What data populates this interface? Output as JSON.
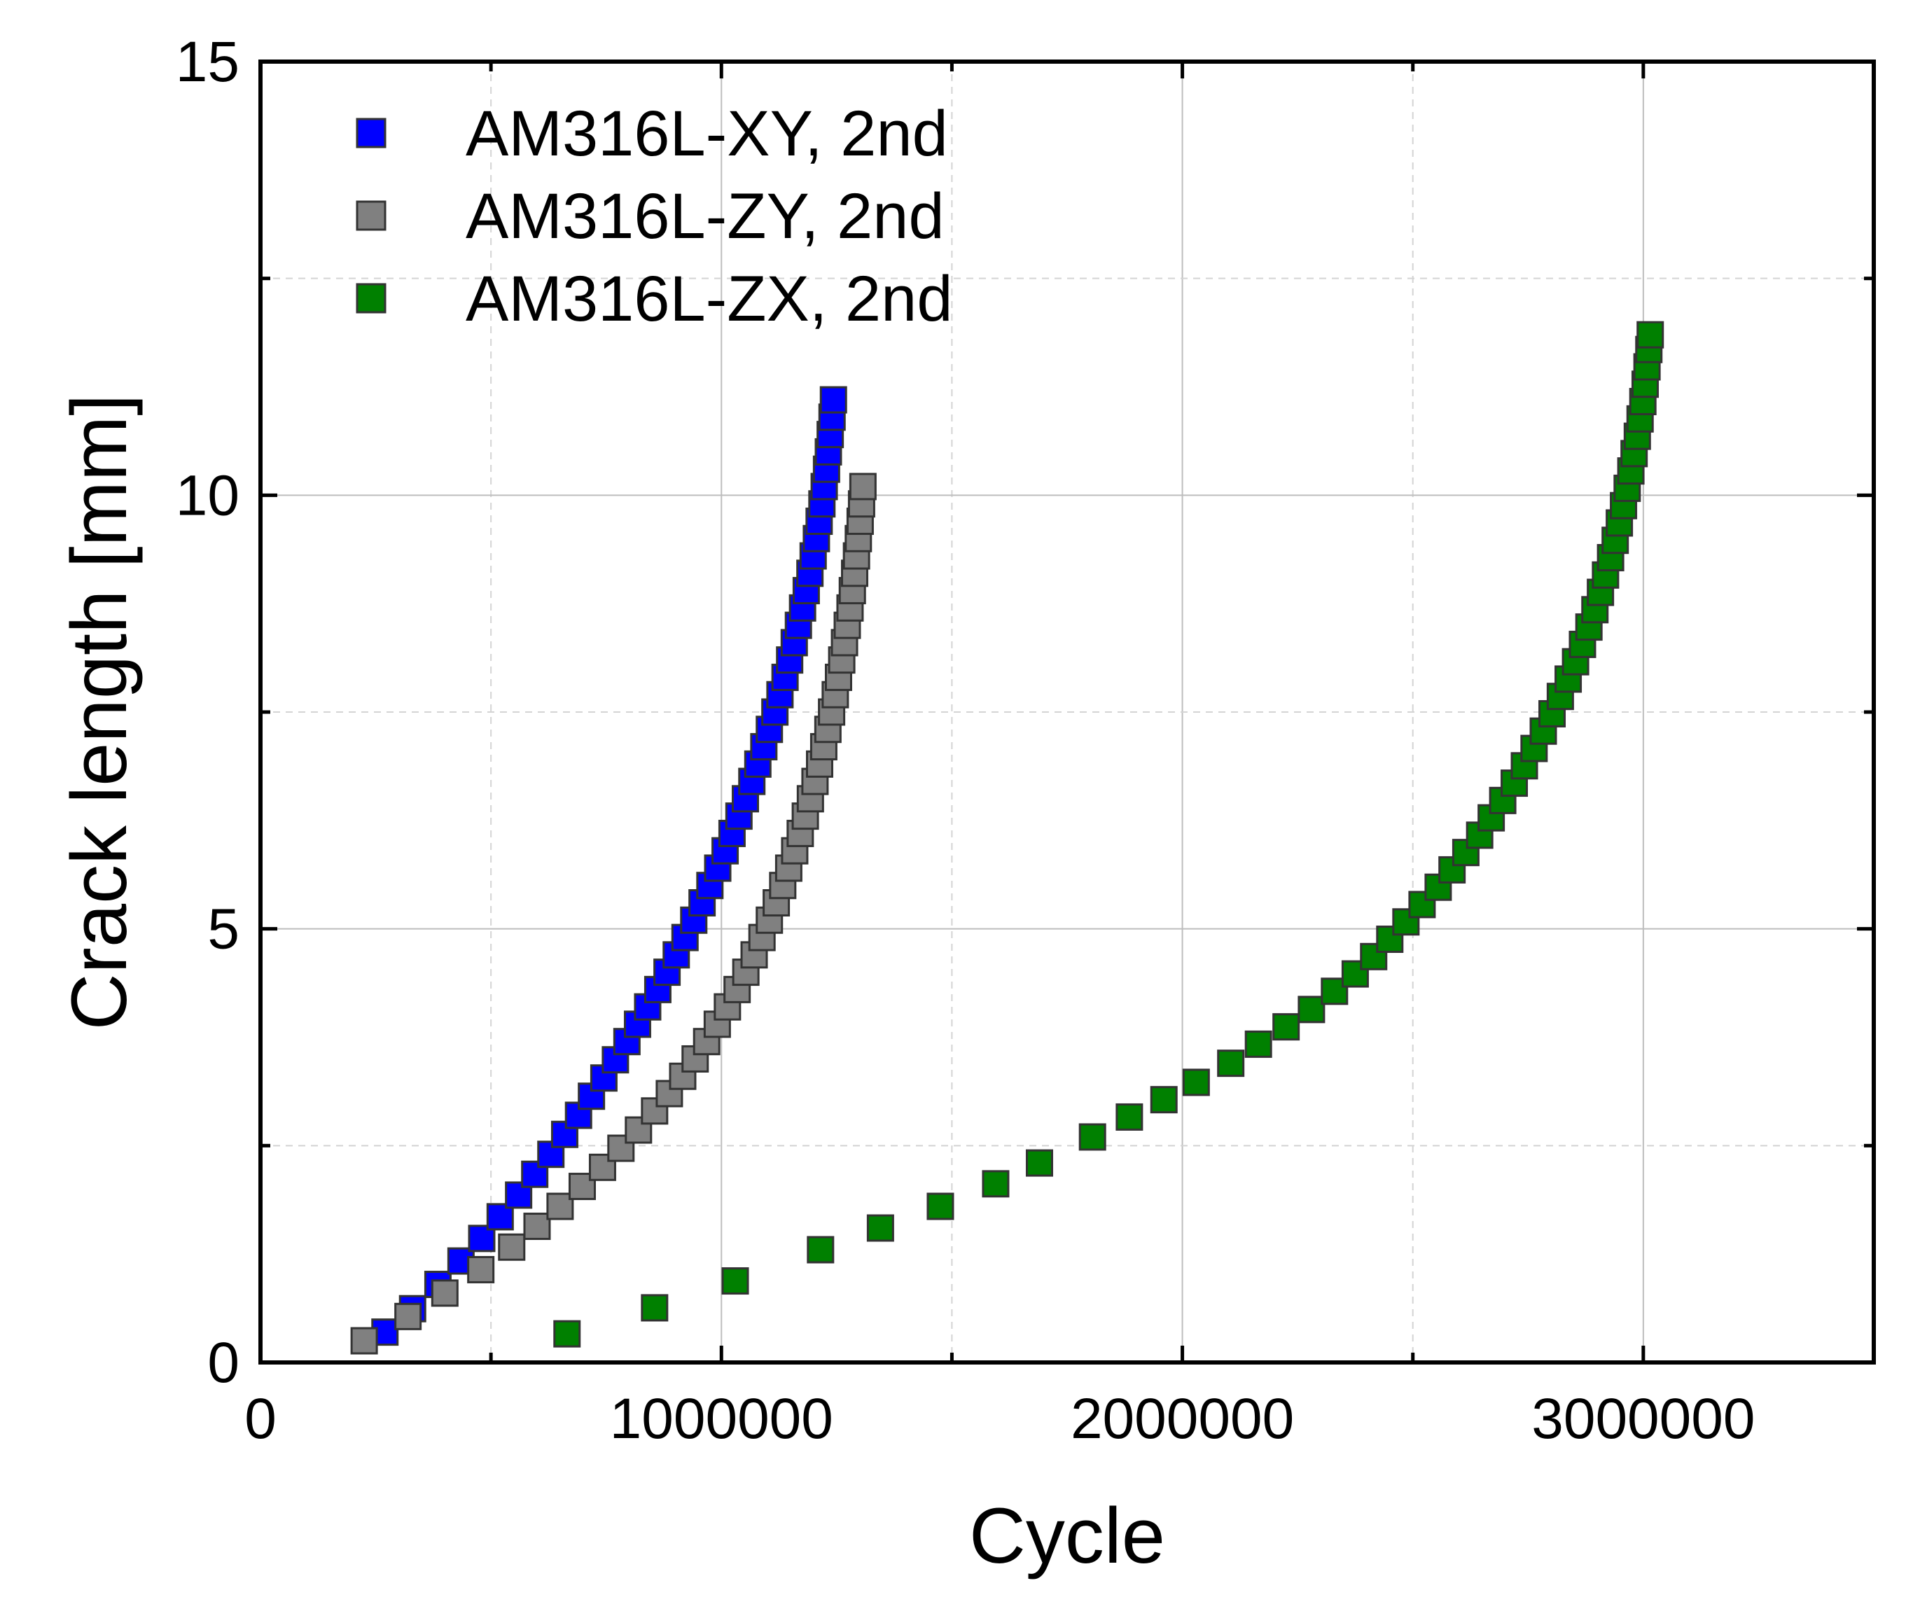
{
  "chart_data": {
    "type": "scatter",
    "xlabel": "Cycle",
    "ylabel": "Crack length [mm]",
    "xlim": [
      0,
      3500000
    ],
    "ylim": [
      0,
      15
    ],
    "x_ticks": [
      0,
      1000000,
      2000000,
      3000000
    ],
    "x_tick_labels": [
      "0",
      "1000000",
      "2000000",
      "3000000"
    ],
    "y_ticks": [
      0,
      5,
      10,
      15
    ],
    "y_tick_labels": [
      "0",
      "5",
      "10",
      "15"
    ],
    "grid": true,
    "legend_position": "top-left",
    "series": [
      {
        "name": "AM316L-XY, 2nd",
        "color": "#0000ff",
        "points": [
          [
            270000,
            0.35
          ],
          [
            330000,
            0.62
          ],
          [
            385000,
            0.9
          ],
          [
            435000,
            1.17
          ],
          [
            480000,
            1.43
          ],
          [
            520000,
            1.68
          ],
          [
            560000,
            1.93
          ],
          [
            595000,
            2.17
          ],
          [
            630000,
            2.4
          ],
          [
            660000,
            2.63
          ],
          [
            690000,
            2.85
          ],
          [
            718000,
            3.07
          ],
          [
            745000,
            3.28
          ],
          [
            770000,
            3.49
          ],
          [
            795000,
            3.7
          ],
          [
            818000,
            3.9
          ],
          [
            840000,
            4.1
          ],
          [
            862000,
            4.3
          ],
          [
            882000,
            4.5
          ],
          [
            902000,
            4.7
          ],
          [
            921000,
            4.9
          ],
          [
            940000,
            5.1
          ],
          [
            958000,
            5.3
          ],
          [
            975000,
            5.5
          ],
          [
            992000,
            5.7
          ],
          [
            1008000,
            5.9
          ],
          [
            1023000,
            6.1
          ],
          [
            1038000,
            6.3
          ],
          [
            1052000,
            6.5
          ],
          [
            1066000,
            6.7
          ],
          [
            1079000,
            6.9
          ],
          [
            1092000,
            7.1
          ],
          [
            1104000,
            7.3
          ],
          [
            1116000,
            7.5
          ],
          [
            1127000,
            7.7
          ],
          [
            1138000,
            7.9
          ],
          [
            1148000,
            8.1
          ],
          [
            1158000,
            8.3
          ],
          [
            1167000,
            8.5
          ],
          [
            1176000,
            8.7
          ],
          [
            1184000,
            8.9
          ],
          [
            1192000,
            9.1
          ],
          [
            1199000,
            9.3
          ],
          [
            1206000,
            9.5
          ],
          [
            1212000,
            9.7
          ],
          [
            1218000,
            9.9
          ],
          [
            1223000,
            10.1
          ],
          [
            1228000,
            10.3
          ],
          [
            1232000,
            10.5
          ],
          [
            1236000,
            10.7
          ],
          [
            1240000,
            10.9
          ],
          [
            1243000,
            11.1
          ]
        ]
      },
      {
        "name": "AM316L-ZY, 2nd",
        "color": "#808080",
        "points": [
          [
            225000,
            0.25
          ],
          [
            320000,
            0.53
          ],
          [
            400000,
            0.8
          ],
          [
            478000,
            1.07
          ],
          [
            545000,
            1.33
          ],
          [
            600000,
            1.57
          ],
          [
            650000,
            1.8
          ],
          [
            698000,
            2.03
          ],
          [
            742000,
            2.25
          ],
          [
            782000,
            2.47
          ],
          [
            820000,
            2.68
          ],
          [
            855000,
            2.9
          ],
          [
            887000,
            3.1
          ],
          [
            916000,
            3.3
          ],
          [
            943000,
            3.5
          ],
          [
            968000,
            3.7
          ],
          [
            991000,
            3.9
          ],
          [
            1013000,
            4.1
          ],
          [
            1034000,
            4.3
          ],
          [
            1053000,
            4.5
          ],
          [
            1071000,
            4.7
          ],
          [
            1088000,
            4.9
          ],
          [
            1104000,
            5.1
          ],
          [
            1119000,
            5.3
          ],
          [
            1133000,
            5.5
          ],
          [
            1146000,
            5.7
          ],
          [
            1159000,
            5.9
          ],
          [
            1171000,
            6.1
          ],
          [
            1182000,
            6.3
          ],
          [
            1193000,
            6.5
          ],
          [
            1203000,
            6.7
          ],
          [
            1213000,
            6.9
          ],
          [
            1222000,
            7.1
          ],
          [
            1231000,
            7.3
          ],
          [
            1239000,
            7.5
          ],
          [
            1247000,
            7.7
          ],
          [
            1254000,
            7.9
          ],
          [
            1261000,
            8.1
          ],
          [
            1267000,
            8.3
          ],
          [
            1273000,
            8.5
          ],
          [
            1279000,
            8.7
          ],
          [
            1284000,
            8.9
          ],
          [
            1289000,
            9.1
          ],
          [
            1293000,
            9.3
          ],
          [
            1297000,
            9.5
          ],
          [
            1301000,
            9.7
          ],
          [
            1304000,
            9.9
          ],
          [
            1307000,
            10.1
          ]
        ]
      },
      {
        "name": "AM316L-ZX, 2nd",
        "color": "#008000",
        "points": [
          [
            665000,
            0.33
          ],
          [
            855000,
            0.63
          ],
          [
            1030000,
            0.94
          ],
          [
            1215000,
            1.3
          ],
          [
            1345000,
            1.55
          ],
          [
            1475000,
            1.8
          ],
          [
            1595000,
            2.06
          ],
          [
            1690000,
            2.3
          ],
          [
            1805000,
            2.6
          ],
          [
            1885000,
            2.83
          ],
          [
            1960000,
            3.03
          ],
          [
            2030000,
            3.23
          ],
          [
            2105000,
            3.45
          ],
          [
            2165000,
            3.67
          ],
          [
            2225000,
            3.87
          ],
          [
            2280000,
            4.07
          ],
          [
            2330000,
            4.28
          ],
          [
            2375000,
            4.48
          ],
          [
            2415000,
            4.68
          ],
          [
            2450000,
            4.88
          ],
          [
            2485000,
            5.08
          ],
          [
            2520000,
            5.28
          ],
          [
            2555000,
            5.48
          ],
          [
            2585000,
            5.68
          ],
          [
            2615000,
            5.88
          ],
          [
            2645000,
            6.08
          ],
          [
            2670000,
            6.28
          ],
          [
            2695000,
            6.48
          ],
          [
            2720000,
            6.68
          ],
          [
            2742000,
            6.88
          ],
          [
            2763000,
            7.08
          ],
          [
            2783000,
            7.28
          ],
          [
            2802000,
            7.48
          ],
          [
            2820000,
            7.68
          ],
          [
            2837000,
            7.88
          ],
          [
            2853000,
            8.08
          ],
          [
            2868000,
            8.28
          ],
          [
            2882000,
            8.48
          ],
          [
            2895000,
            8.68
          ],
          [
            2907000,
            8.88
          ],
          [
            2918000,
            9.08
          ],
          [
            2929000,
            9.28
          ],
          [
            2939000,
            9.48
          ],
          [
            2948000,
            9.68
          ],
          [
            2957000,
            9.88
          ],
          [
            2965000,
            10.08
          ],
          [
            2973000,
            10.28
          ],
          [
            2980000,
            10.48
          ],
          [
            2987000,
            10.68
          ],
          [
            2993000,
            10.88
          ],
          [
            2999000,
            11.08
          ],
          [
            3004000,
            11.28
          ],
          [
            3008000,
            11.48
          ],
          [
            3012000,
            11.68
          ],
          [
            3015000,
            11.85
          ]
        ]
      }
    ]
  }
}
